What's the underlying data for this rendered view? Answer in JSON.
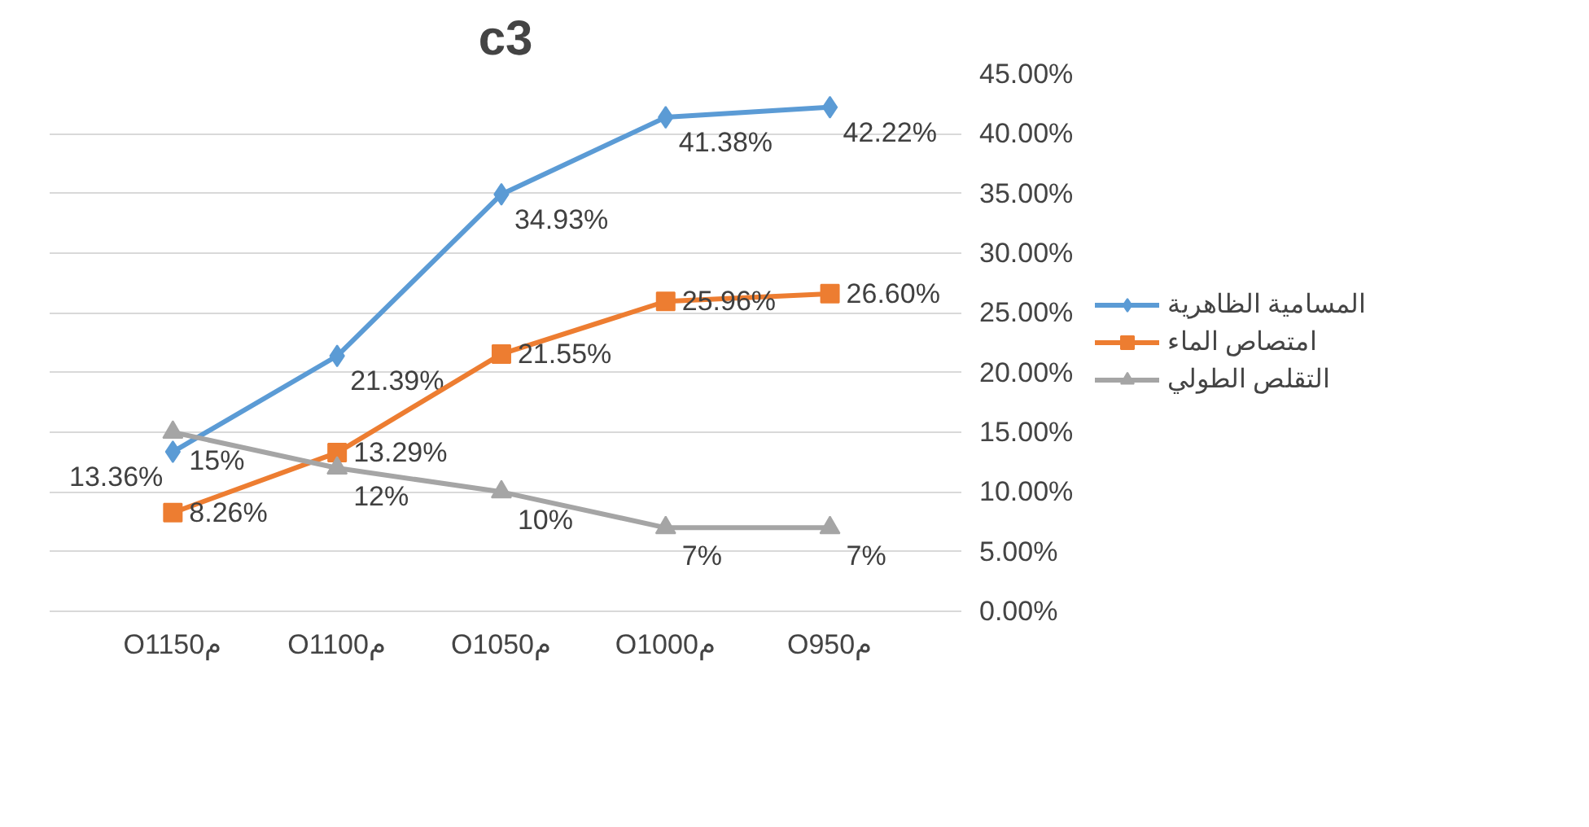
{
  "chart_data": {
    "type": "line",
    "title": "c3",
    "categories": [
      "Oم1150",
      "Oم1100",
      "Oم1050",
      "Oم1000",
      "Oم950"
    ],
    "series": [
      {
        "name": "المسامية الظاهرية",
        "color": "#5b9bd5",
        "marker": "diamond",
        "values": [
          13.36,
          21.39,
          34.93,
          41.38,
          42.22
        ],
        "value_labels": [
          "13.36%",
          "21.39%",
          "34.93%",
          "41.38%",
          "42.22%"
        ]
      },
      {
        "name": "امتصاص الماء",
        "color": "#ed7d31",
        "marker": "square",
        "values": [
          8.26,
          13.29,
          21.55,
          25.96,
          26.6
        ],
        "value_labels": [
          "8.26%",
          "13.29%",
          "21.55%",
          "25.96%",
          "26.60%"
        ]
      },
      {
        "name": "التقلص الطولي",
        "color": "#a5a5a5",
        "marker": "triangle",
        "values": [
          15,
          12,
          10,
          7,
          7
        ],
        "value_labels": [
          "15%",
          "12%",
          "10%",
          "7%",
          "7%"
        ]
      }
    ],
    "ylim": [
      0,
      45
    ],
    "yticks": [
      {
        "value": 0,
        "label": "0.00%"
      },
      {
        "value": 5,
        "label": "5.00%"
      },
      {
        "value": 10,
        "label": "10.00%"
      },
      {
        "value": 15,
        "label": "15.00%"
      },
      {
        "value": 20,
        "label": "20.00%"
      },
      {
        "value": 25,
        "label": "25.00%"
      },
      {
        "value": 30,
        "label": "30.00%"
      },
      {
        "value": 35,
        "label": "35.00%"
      },
      {
        "value": 40,
        "label": "40.00%"
      },
      {
        "value": 45,
        "label": "45.00%"
      }
    ],
    "grid": "y",
    "legend": "right",
    "line_style": "solid"
  }
}
